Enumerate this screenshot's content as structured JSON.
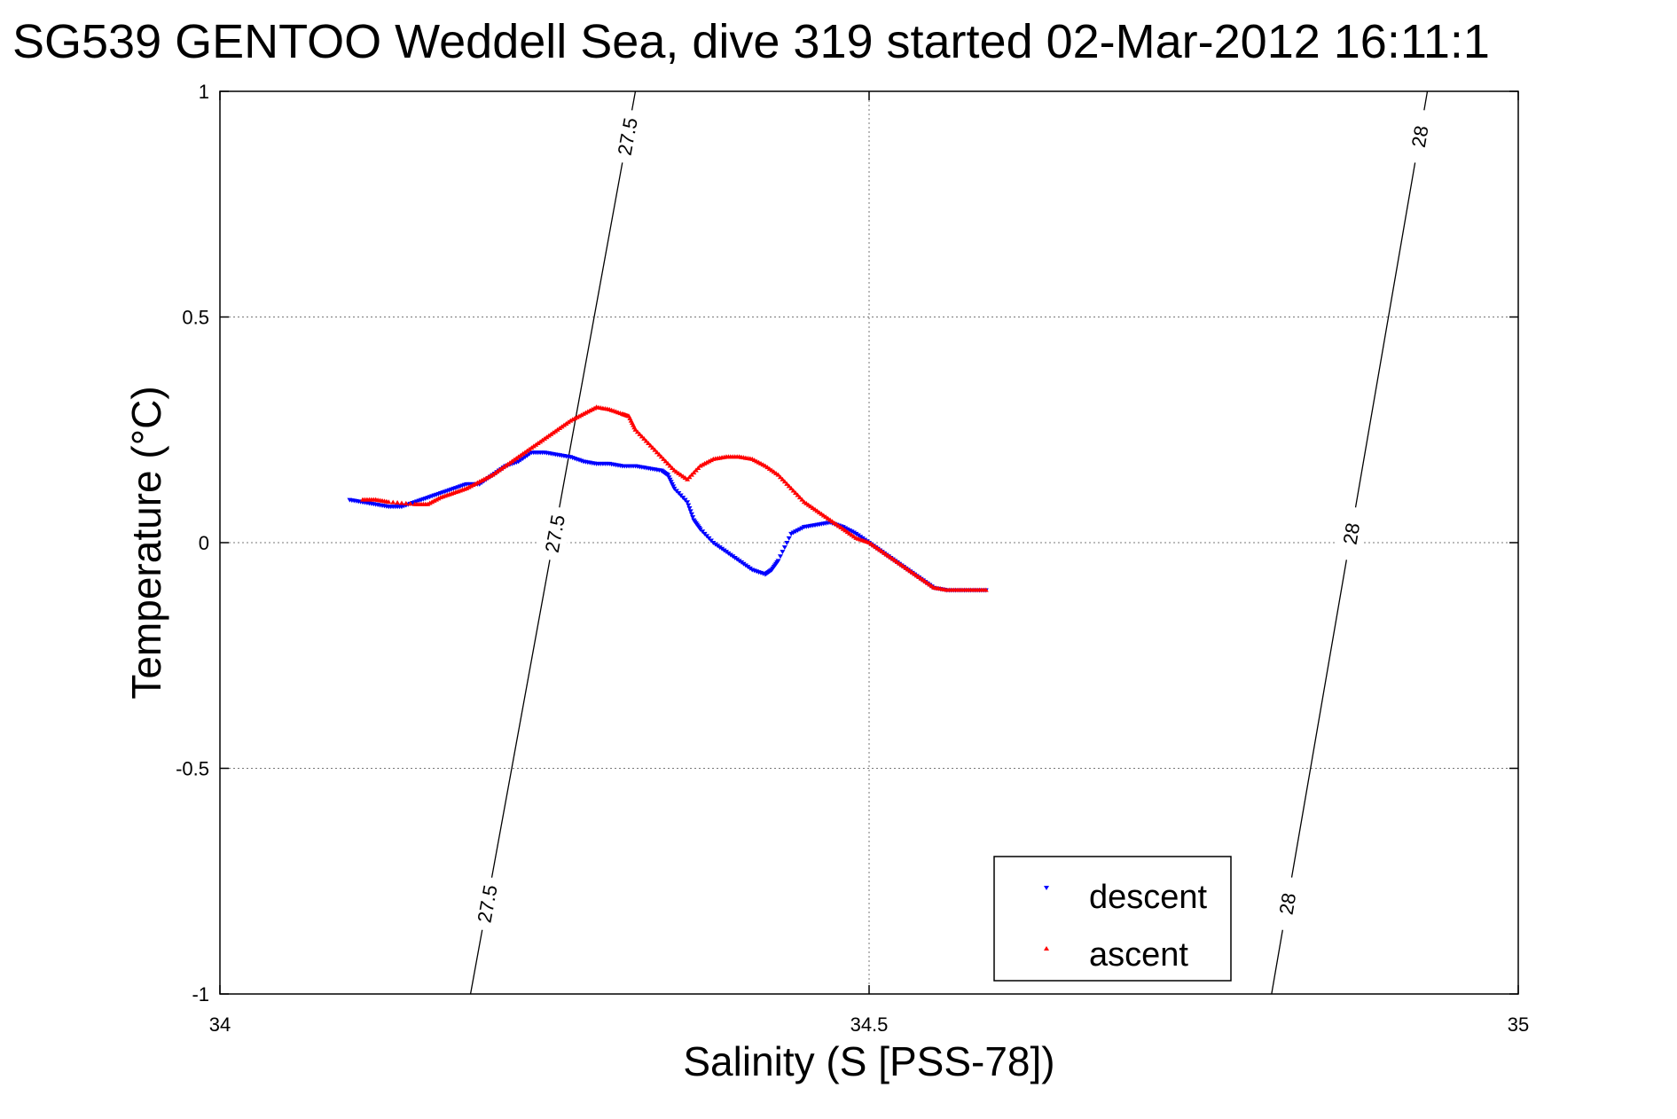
{
  "chart_data": {
    "type": "scatter",
    "title": "SG539 GENTOO Weddell Sea, dive 319 started 02-Mar-2012 16:11:1",
    "xlabel": "Salinity (S [PSS-78])",
    "ylabel": "Temperature (°C)",
    "xlim": [
      34,
      35
    ],
    "ylim": [
      -1,
      1
    ],
    "x_ticks": [
      34,
      34.5,
      35
    ],
    "x_tick_labels": [
      "34",
      "34.5",
      "35"
    ],
    "y_ticks": [
      -1,
      -0.5,
      0,
      0.5,
      1
    ],
    "y_tick_labels": [
      "-1",
      "-0.5",
      "0",
      "0.5",
      "1"
    ],
    "grid": true,
    "legend_position": "bottom-right",
    "series": [
      {
        "name": "descent",
        "color": "#0000ff",
        "marker": "triangle-down",
        "x": [
          34.1,
          34.11,
          34.12,
          34.13,
          34.14,
          34.15,
          34.16,
          34.17,
          34.18,
          34.19,
          34.2,
          34.21,
          34.22,
          34.23,
          34.24,
          34.25,
          34.26,
          34.27,
          34.28,
          34.29,
          34.3,
          34.31,
          34.32,
          34.33,
          34.34,
          34.345,
          34.35,
          34.36,
          34.365,
          34.37,
          34.38,
          34.39,
          34.4,
          34.41,
          34.42,
          34.425,
          34.43,
          34.44,
          34.45,
          34.46,
          34.47,
          34.48,
          34.49,
          34.5,
          34.51,
          34.52,
          34.53,
          34.54,
          34.55,
          34.56,
          34.57,
          34.58,
          34.59
        ],
        "y": [
          0.095,
          0.09,
          0.085,
          0.08,
          0.08,
          0.09,
          0.1,
          0.11,
          0.12,
          0.13,
          0.13,
          0.15,
          0.17,
          0.18,
          0.2,
          0.2,
          0.195,
          0.19,
          0.18,
          0.175,
          0.175,
          0.17,
          0.17,
          0.165,
          0.16,
          0.15,
          0.12,
          0.09,
          0.05,
          0.03,
          0.0,
          -0.02,
          -0.04,
          -0.06,
          -0.07,
          -0.06,
          -0.04,
          0.02,
          0.035,
          0.04,
          0.045,
          0.035,
          0.02,
          0.0,
          -0.02,
          -0.04,
          -0.06,
          -0.08,
          -0.1,
          -0.105,
          -0.105,
          -0.105,
          -0.105
        ]
      },
      {
        "name": "ascent",
        "color": "#ff0000",
        "marker": "triangle-up",
        "x": [
          34.11,
          34.12,
          34.13,
          34.15,
          34.16,
          34.17,
          34.18,
          34.19,
          34.2,
          34.21,
          34.22,
          34.23,
          34.24,
          34.25,
          34.26,
          34.27,
          34.28,
          34.29,
          34.3,
          34.31,
          34.315,
          34.32,
          34.33,
          34.34,
          34.35,
          34.36,
          34.37,
          34.38,
          34.39,
          34.4,
          34.41,
          34.42,
          34.43,
          34.44,
          34.45,
          34.46,
          34.47,
          34.48,
          34.49,
          34.5,
          34.51,
          34.52,
          34.53,
          34.54,
          34.55,
          34.56,
          34.57,
          34.58,
          34.59
        ],
        "y": [
          0.095,
          0.095,
          0.09,
          0.085,
          0.085,
          0.1,
          0.11,
          0.12,
          0.135,
          0.15,
          0.17,
          0.19,
          0.21,
          0.23,
          0.25,
          0.27,
          0.285,
          0.3,
          0.295,
          0.285,
          0.28,
          0.25,
          0.22,
          0.19,
          0.16,
          0.14,
          0.17,
          0.185,
          0.19,
          0.19,
          0.185,
          0.17,
          0.15,
          0.12,
          0.09,
          0.07,
          0.05,
          0.03,
          0.01,
          0.0,
          -0.02,
          -0.04,
          -0.06,
          -0.08,
          -0.1,
          -0.105,
          -0.105,
          -0.105,
          -0.105
        ]
      }
    ],
    "isopycnals": [
      {
        "label": "27.5",
        "x_at_top": 34.32,
        "x_at_bottom": 34.193
      },
      {
        "label": "28",
        "x_at_top": 34.93,
        "x_at_bottom": 34.81
      }
    ]
  }
}
